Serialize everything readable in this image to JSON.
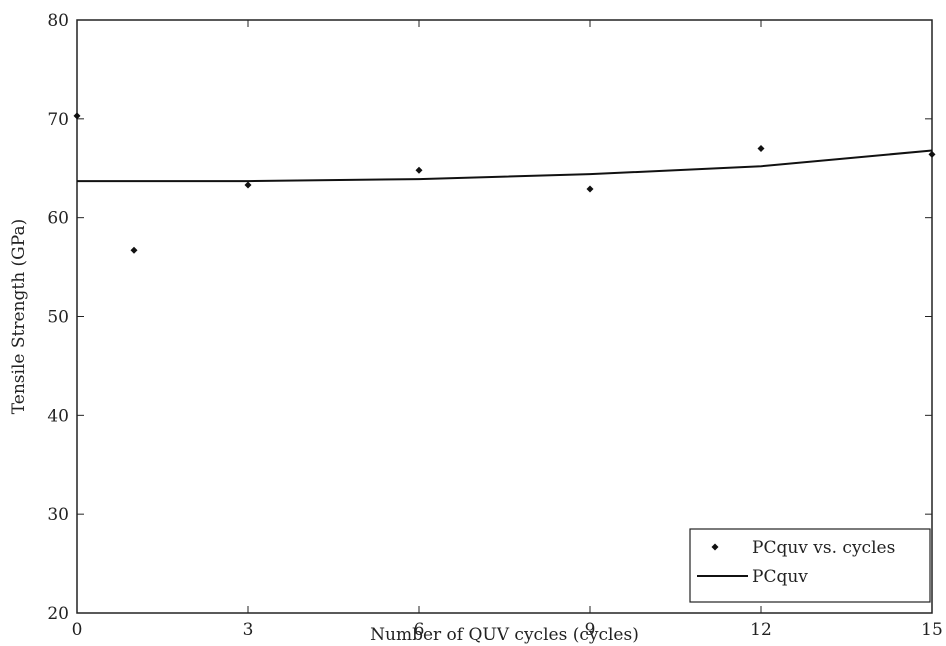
{
  "chart_data": {
    "type": "scatter",
    "title": "",
    "xlabel": "Number of QUV cycles (cycles)",
    "ylabel": "Tensile Strength (GPa)",
    "xlim": [
      0,
      15
    ],
    "ylim": [
      20,
      80
    ],
    "xticks": [
      0,
      3,
      6,
      9,
      12,
      15
    ],
    "yticks": [
      20,
      30,
      40,
      50,
      60,
      70,
      80
    ],
    "xtick_labels": [
      "0",
      "3",
      "6",
      "9",
      "12",
      "15"
    ],
    "ytick_labels": [
      "20",
      "30",
      "40",
      "50",
      "60",
      "70",
      "80"
    ],
    "grid": false,
    "legend_position": "bottom-right",
    "series": [
      {
        "name": "PCquv vs. cycles",
        "kind": "points",
        "color": "#111111",
        "x": [
          0,
          1,
          3,
          6,
          9,
          12,
          15
        ],
        "y": [
          70.3,
          56.7,
          63.3,
          64.8,
          62.9,
          67.0,
          66.4
        ]
      },
      {
        "name": "PCquv",
        "kind": "line",
        "color": "#111111",
        "x": [
          0,
          3,
          6,
          9,
          12,
          15
        ],
        "y": [
          63.7,
          63.7,
          63.9,
          64.4,
          65.2,
          66.8
        ]
      }
    ]
  }
}
